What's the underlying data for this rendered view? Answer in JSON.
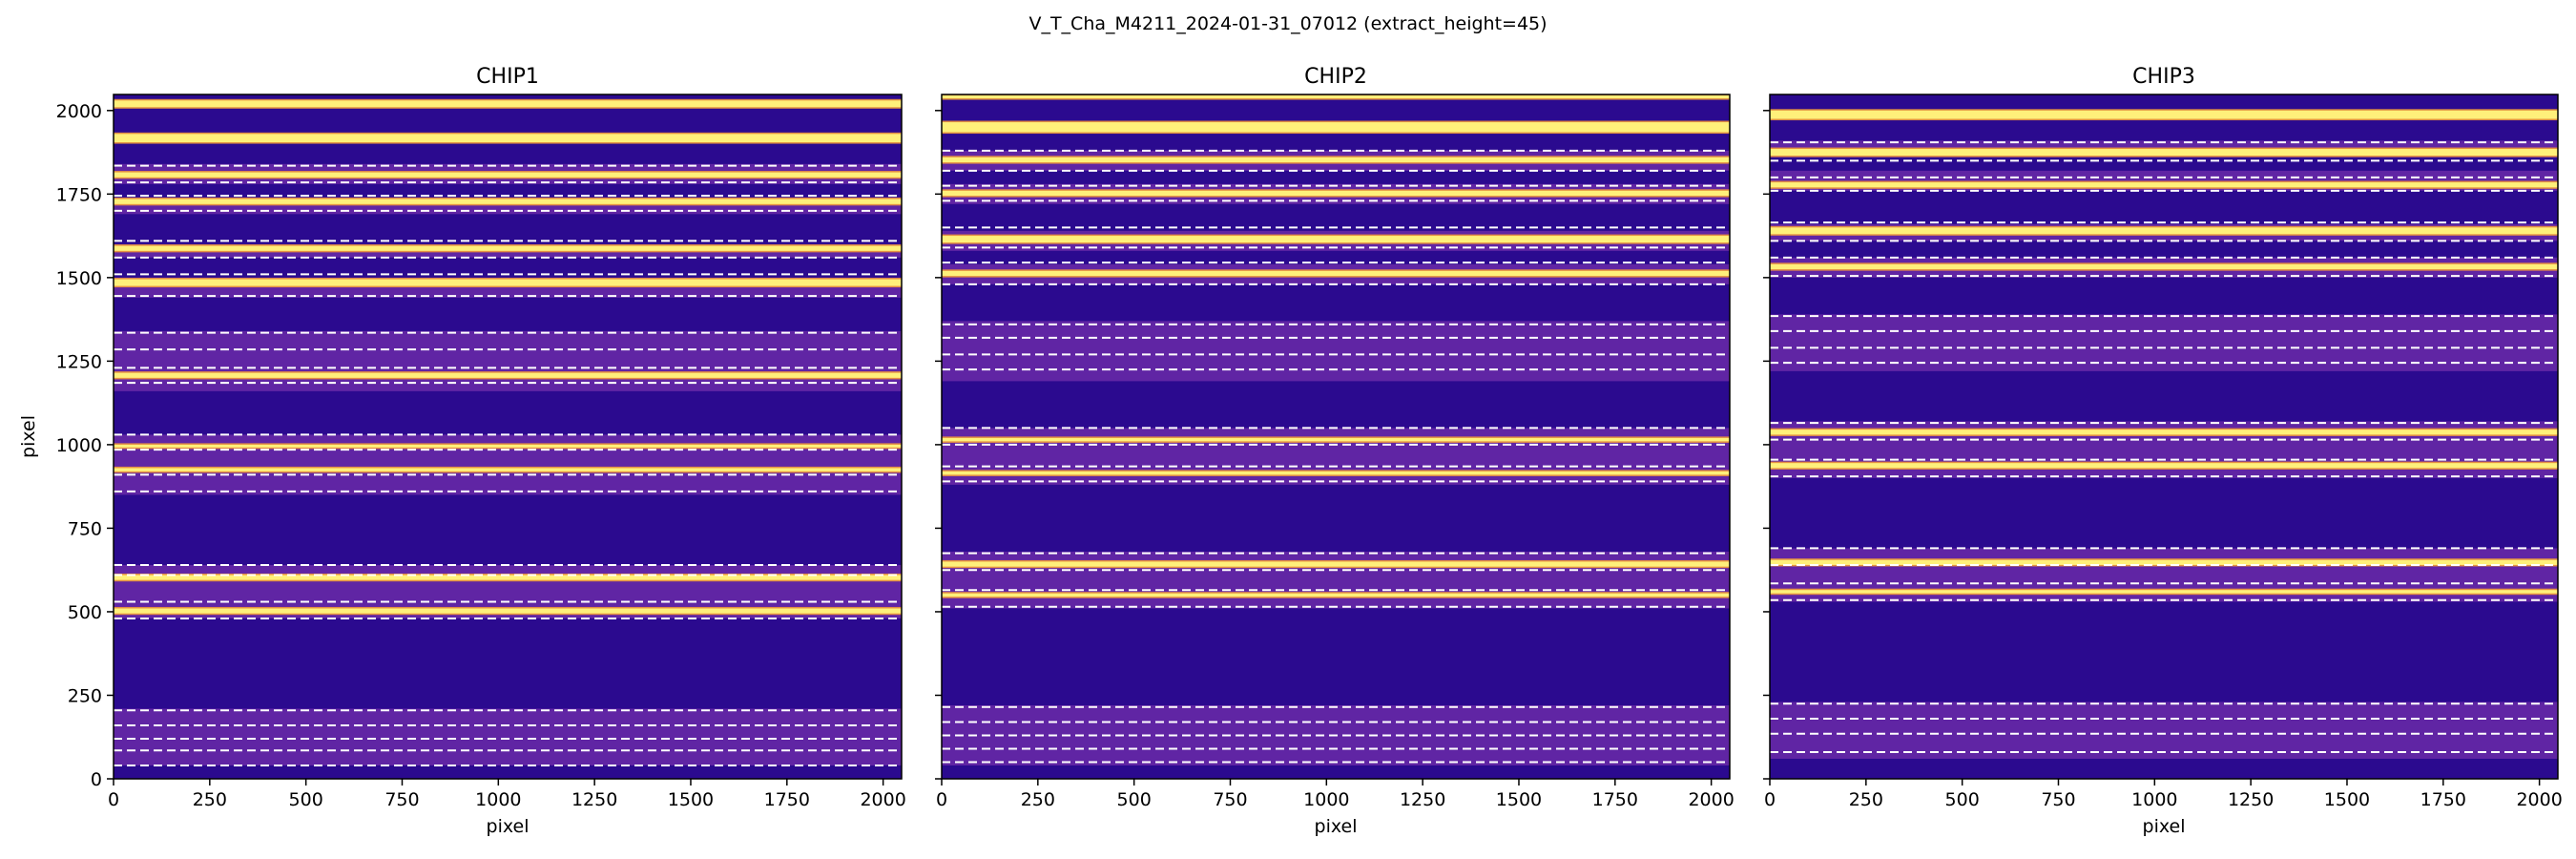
{
  "figure": {
    "title": "V_T_Cha_M4211_2024-01-31_07012  (extract_height=45)"
  },
  "colors": {
    "background": "#2b0a8f",
    "order_band": "#6a2aa8",
    "trace_core": "#fff07a",
    "trace_edge": "#f39b39",
    "aperture_lines": "#ffffff",
    "axis": "#000000"
  },
  "chart_data": [
    {
      "type": "heatmap",
      "title": "CHIP1",
      "xlabel": "pixel",
      "ylabel": "pixel",
      "xlim": [
        0,
        2048
      ],
      "ylim": [
        0,
        2048
      ],
      "colormap": "plasma",
      "xticks": [
        0,
        250,
        500,
        750,
        1000,
        1250,
        1500,
        1750,
        2000
      ],
      "yticks": [
        0,
        250,
        500,
        750,
        1000,
        1250,
        1500,
        1750,
        2000
      ],
      "order_bands": [
        [
          40,
          210
        ],
        [
          480,
          640
        ],
        [
          850,
          1030
        ],
        [
          1160,
          1340
        ],
        [
          1440,
          1500
        ],
        [
          1560,
          1600
        ],
        [
          1690,
          1740
        ],
        [
          1780,
          1840
        ]
      ],
      "traces": [
        {
          "y0": 2010,
          "y1": 2030
        },
        {
          "y0": 1905,
          "y1": 1930
        },
        {
          "y0": 1800,
          "y1": 1815
        },
        {
          "y0": 1720,
          "y1": 1735
        },
        {
          "y0": 1580,
          "y1": 1595
        },
        {
          "y0": 1475,
          "y1": 1495
        },
        {
          "y0": 1200,
          "y1": 1215
        },
        {
          "y0": 995,
          "y1": 1000
        },
        {
          "y0": 920,
          "y1": 930
        },
        {
          "y0": 595,
          "y1": 610
        },
        {
          "y0": 495,
          "y1": 510
        }
      ],
      "aperture_lines": [
        1835,
        1785,
        1745,
        1700,
        1610,
        1560,
        1510,
        1445,
        1335,
        1285,
        1230,
        1185,
        1030,
        985,
        910,
        860,
        640,
        610,
        530,
        480,
        205,
        160,
        120,
        85,
        40
      ]
    },
    {
      "type": "heatmap",
      "title": "CHIP2",
      "xlabel": "pixel",
      "ylabel": "",
      "xlim": [
        0,
        2048
      ],
      "ylim": [
        0,
        2048
      ],
      "colormap": "plasma",
      "xticks": [
        0,
        250,
        500,
        750,
        1000,
        1250,
        1500,
        1750,
        2000
      ],
      "yticks": [
        0,
        250,
        500,
        750,
        1000,
        1250,
        1500,
        1750,
        2000
      ],
      "order_bands": [
        [
          40,
          220
        ],
        [
          510,
          680
        ],
        [
          880,
          1050
        ],
        [
          1190,
          1370
        ],
        [
          1480,
          1540
        ],
        [
          1580,
          1640
        ],
        [
          1720,
          1780
        ],
        [
          1820,
          1880
        ]
      ],
      "traces": [
        {
          "y0": 2040,
          "y1": 2045
        },
        {
          "y0": 1935,
          "y1": 1965
        },
        {
          "y0": 1845,
          "y1": 1860
        },
        {
          "y0": 1745,
          "y1": 1760
        },
        {
          "y0": 1605,
          "y1": 1625
        },
        {
          "y0": 1505,
          "y1": 1520
        },
        {
          "y0": 1010,
          "y1": 1020
        },
        {
          "y0": 910,
          "y1": 920
        },
        {
          "y0": 635,
          "y1": 650
        },
        {
          "y0": 545,
          "y1": 555
        }
      ],
      "aperture_lines": [
        1880,
        1820,
        1775,
        1730,
        1650,
        1590,
        1545,
        1480,
        1360,
        1320,
        1270,
        1225,
        1050,
        1000,
        935,
        890,
        675,
        625,
        565,
        515,
        215,
        170,
        130,
        90,
        50
      ]
    },
    {
      "type": "heatmap",
      "title": "CHIP3",
      "xlabel": "pixel",
      "ylabel": "",
      "xlim": [
        0,
        2048
      ],
      "ylim": [
        0,
        2048
      ],
      "colormap": "plasma",
      "xticks": [
        0,
        250,
        500,
        750,
        1000,
        1250,
        1500,
        1750,
        2000
      ],
      "yticks": [
        0,
        250,
        500,
        750,
        1000,
        1250,
        1500,
        1750,
        2000
      ],
      "order_bands": [
        [
          60,
          230
        ],
        [
          530,
          690
        ],
        [
          900,
          1070
        ],
        [
          1220,
          1390
        ],
        [
          1500,
          1560
        ],
        [
          1610,
          1660
        ],
        [
          1760,
          1820
        ],
        [
          1860,
          1910
        ]
      ],
      "traces": [
        {
          "y0": 1975,
          "y1": 2000
        },
        {
          "y0": 1865,
          "y1": 1885
        },
        {
          "y0": 1770,
          "y1": 1785
        },
        {
          "y0": 1630,
          "y1": 1650
        },
        {
          "y0": 1525,
          "y1": 1540
        },
        {
          "y0": 1030,
          "y1": 1045
        },
        {
          "y0": 930,
          "y1": 945
        },
        {
          "y0": 640,
          "y1": 655
        },
        {
          "y0": 555,
          "y1": 565
        }
      ],
      "aperture_lines": [
        1905,
        1850,
        1800,
        1760,
        1665,
        1610,
        1560,
        1505,
        1385,
        1340,
        1290,
        1245,
        1065,
        1015,
        955,
        905,
        690,
        640,
        585,
        535,
        225,
        180,
        135,
        80
      ]
    }
  ]
}
